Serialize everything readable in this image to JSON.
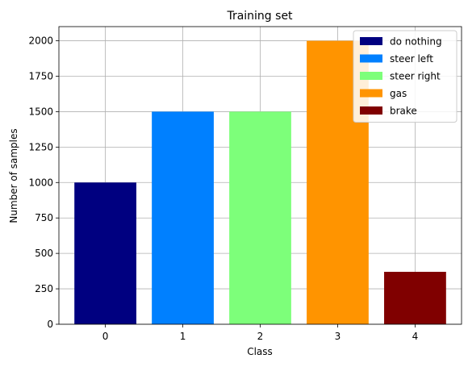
{
  "chart_data": {
    "type": "bar",
    "title": "Training set",
    "xlabel": "Class",
    "ylabel": "Number of samples",
    "categories": [
      "0",
      "1",
      "2",
      "3",
      "4"
    ],
    "values": [
      1000,
      1500,
      1500,
      2000,
      370
    ],
    "bar_colors": [
      "#000080",
      "#0080ff",
      "#7dff7a",
      "#ff9400",
      "#800000"
    ],
    "legend_labels": [
      "do nothing",
      "steer left",
      "steer right",
      "gas",
      "brake"
    ],
    "legend_position": "top-right",
    "ylim": [
      0,
      2100
    ],
    "yticks": [
      0,
      250,
      500,
      750,
      1000,
      1250,
      1500,
      1750,
      2000
    ],
    "grid": true
  }
}
